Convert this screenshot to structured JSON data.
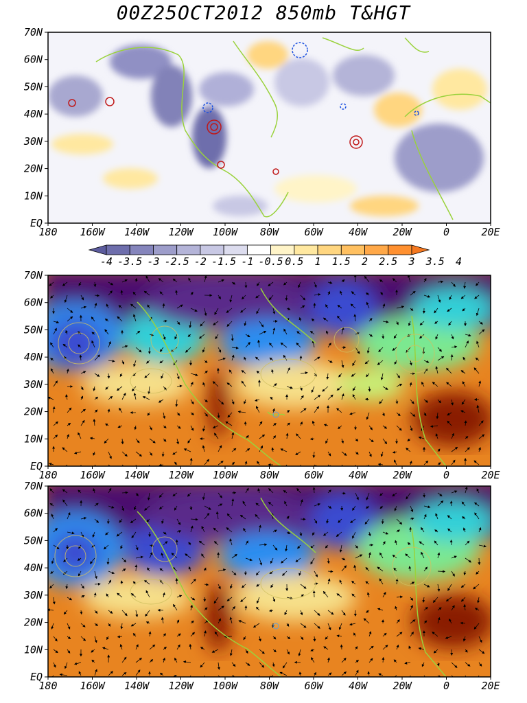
{
  "title": "00Z25OCT2012 850mb T&HGT",
  "lat_labels": [
    "70N",
    "60N",
    "50N",
    "40N",
    "30N",
    "20N",
    "10N",
    "EQ"
  ],
  "lon_labels": [
    "180",
    "160W",
    "140W",
    "120W",
    "100W",
    "80W",
    "60W",
    "40W",
    "20W",
    "0",
    "20E"
  ],
  "colorbar": {
    "labels": [
      "-4",
      "-3.5",
      "-3",
      "-2.5",
      "-2",
      "-1.5",
      "-1",
      "-0.5",
      "0.5",
      "1",
      "1.5",
      "2",
      "2.5",
      "3",
      "3.5",
      "4"
    ],
    "colors": [
      "#5c5c9e",
      "#6e6eac",
      "#8585bc",
      "#9d9dca",
      "#b4b4d8",
      "#c8c8e4",
      "#dcdcee",
      "#ffffff",
      "#fff4c8",
      "#ffe8a0",
      "#ffd680",
      "#ffc060",
      "#ffa848",
      "#ff9030",
      "#f57820"
    ]
  },
  "temp_palette": [
    "#4b0e6e",
    "#5a2a8a",
    "#3b4bd0",
    "#2a8ef0",
    "#30d0d8",
    "#7ce890",
    "#c8f078",
    "#f6e08a",
    "#f2b050",
    "#e88420",
    "#d06010",
    "#8a1a00"
  ]
}
